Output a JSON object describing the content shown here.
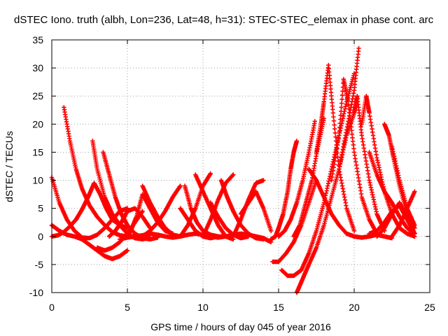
{
  "chart_data": {
    "type": "scatter",
    "title": "dSTEC Iono. truth (albh, Lon=236, Lat=48, h=31): STEC-STEC_elemax in phase cont. arc",
    "xlabel": "GPS time / hours of day 045 of year 2016",
    "ylabel": "dSTEC  / TECUs",
    "xlim": [
      0,
      25
    ],
    "ylim": [
      -10,
      35
    ],
    "xticks": [
      0,
      5,
      10,
      15,
      20,
      25
    ],
    "yticks": [
      -10,
      -5,
      0,
      5,
      10,
      15,
      20,
      25,
      30,
      35
    ],
    "grid": true,
    "marker": "+",
    "color": "#ff0000",
    "series": [
      {
        "x": [
          0.0,
          0.5,
          1.0,
          1.5,
          2.0,
          2.5,
          3.0,
          3.5,
          4.0,
          4.5,
          5.0
        ],
        "y": [
          10.5,
          6.0,
          3.0,
          1.0,
          -0.2,
          -0.3,
          0.3,
          1.5,
          3.0,
          4.5,
          5.0
        ]
      },
      {
        "x": [
          0.0,
          0.5,
          1.0,
          1.5,
          2.0,
          2.5,
          3.0,
          3.5,
          4.0,
          4.5,
          5.0
        ],
        "y": [
          2.0,
          1.0,
          0.3,
          0.0,
          -0.5,
          -1.5,
          -2.5,
          -3.5,
          -4.0,
          -3.5,
          -2.5
        ]
      },
      {
        "x": [
          0.0,
          0.4,
          0.8,
          1.2,
          1.6,
          2.0,
          2.4,
          2.8,
          3.2,
          3.6,
          4.0,
          4.5,
          5.0
        ],
        "y": [
          0.0,
          0.2,
          0.8,
          1.8,
          3.0,
          4.8,
          7.0,
          9.5,
          7.5,
          5.0,
          3.0,
          2.0,
          1.5
        ]
      },
      {
        "x": [
          0.8,
          1.2,
          1.6,
          2.0,
          2.5,
          3.0,
          3.5,
          4.0,
          4.5,
          5.0,
          5.5
        ],
        "y": [
          23.0,
          17.0,
          12.0,
          8.5,
          5.5,
          3.5,
          2.0,
          0.8,
          0.2,
          0.0,
          0.0
        ]
      },
      {
        "x": [
          2.7,
          3.0,
          3.5,
          4.0,
          4.5,
          5.0,
          5.5,
          6.0,
          6.5
        ],
        "y": [
          17.0,
          12.0,
          7.0,
          4.0,
          2.0,
          0.5,
          -0.3,
          -0.5,
          -0.2
        ]
      },
      {
        "x": [
          3.4,
          3.8,
          4.2,
          4.6,
          5.0,
          5.5,
          6.0,
          6.5,
          7.0
        ],
        "y": [
          15.0,
          11.0,
          7.0,
          4.0,
          2.0,
          0.5,
          -0.3,
          -0.5,
          -0.2
        ]
      },
      {
        "x": [
          3.0,
          3.5,
          4.0,
          4.5,
          5.0,
          5.5,
          6.0
        ],
        "y": [
          -2.0,
          -2.5,
          -2.0,
          -1.0,
          0.5,
          2.5,
          4.5
        ]
      },
      {
        "x": [
          3.8,
          4.2,
          4.6,
          5.0,
          5.5,
          6.0,
          6.5
        ],
        "y": [
          0.0,
          1.0,
          2.5,
          4.5,
          5.0,
          3.5,
          1.5
        ]
      },
      {
        "x": [
          5.0,
          5.3,
          5.6,
          6.0,
          6.5,
          7.0,
          7.5,
          8.0
        ],
        "y": [
          0.0,
          1.5,
          3.5,
          7.5,
          5.0,
          2.5,
          1.0,
          0.5
        ]
      },
      {
        "x": [
          6.0,
          6.5,
          7.0,
          7.5,
          8.0,
          8.5
        ],
        "y": [
          9.0,
          6.0,
          3.5,
          1.5,
          0.3,
          0.0
        ]
      },
      {
        "x": [
          6.0,
          6.5,
          7.0,
          7.5,
          8.0,
          8.5
        ],
        "y": [
          0.0,
          1.0,
          2.5,
          4.5,
          7.0,
          9.0
        ]
      },
      {
        "x": [
          4.5,
          5.0,
          5.5,
          6.0,
          6.5,
          7.0,
          7.5,
          8.0,
          8.5,
          9.0,
          9.5,
          10.0,
          10.5,
          11.0,
          11.5,
          12.0,
          12.5,
          13.0,
          13.5,
          14.0,
          14.5
        ],
        "y": [
          -0.5,
          -0.2,
          0.0,
          0.2,
          0.5,
          0.3,
          0.0,
          -0.2,
          0.0,
          0.3,
          0.5,
          0.3,
          0.0,
          -0.2,
          0.0,
          0.3,
          0.5,
          0.3,
          0.0,
          -0.3,
          -1.0
        ]
      },
      {
        "x": [
          8.8,
          9.2,
          9.6,
          10.0,
          10.5,
          11.0,
          11.5
        ],
        "y": [
          9.0,
          5.0,
          2.5,
          1.0,
          0.3,
          0.0,
          0.0
        ]
      },
      {
        "x": [
          8.5,
          9.0,
          9.5,
          10.0,
          10.5,
          11.0
        ],
        "y": [
          5.0,
          3.0,
          1.0,
          0.0,
          -0.3,
          0.0
        ]
      },
      {
        "x": [
          8.5,
          9.0,
          9.5,
          10.0,
          10.5
        ],
        "y": [
          0.0,
          2.0,
          5.0,
          9.0,
          11.2
        ]
      },
      {
        "x": [
          9.5,
          10.0,
          10.5,
          11.0,
          11.5,
          12.0
        ],
        "y": [
          11.0,
          8.0,
          5.0,
          2.0,
          0.0,
          -0.5
        ]
      },
      {
        "x": [
          10.0,
          10.5,
          11.0,
          11.5,
          12.0
        ],
        "y": [
          0.0,
          3.0,
          6.5,
          9.5,
          11.0
        ]
      },
      {
        "x": [
          10.5,
          11.0,
          11.5,
          12.0,
          12.5,
          13.0
        ],
        "y": [
          6.0,
          3.5,
          1.5,
          0.3,
          -0.3,
          0.0
        ]
      },
      {
        "x": [
          11.2,
          11.6,
          12.0,
          12.5,
          13.0,
          13.5,
          14.0
        ],
        "y": [
          10.0,
          7.0,
          4.5,
          2.0,
          0.5,
          -0.3,
          -0.5
        ]
      },
      {
        "x": [
          12.0,
          12.5,
          13.0,
          13.5,
          14.0
        ],
        "y": [
          0.0,
          3.0,
          6.5,
          9.5,
          10.0
        ]
      },
      {
        "x": [
          12.5,
          13.0,
          13.5,
          14.0,
          14.5
        ],
        "y": [
          4.0,
          6.0,
          8.0,
          5.0,
          1.0
        ]
      },
      {
        "x": [
          14.5,
          14.8,
          15.0,
          15.3,
          15.6,
          15.8,
          16.0,
          16.2
        ],
        "y": [
          -0.5,
          0.0,
          1.5,
          4.0,
          8.0,
          12.0,
          15.0,
          17.0
        ]
      },
      {
        "x": [
          15.0,
          15.4,
          15.8,
          16.2,
          16.6,
          17.0,
          17.4
        ],
        "y": [
          0.0,
          1.0,
          3.0,
          6.0,
          10.0,
          15.0,
          20.5
        ]
      },
      {
        "x": [
          16.0,
          16.4,
          16.8,
          17.2,
          17.6,
          18.0
        ],
        "y": [
          0.0,
          2.0,
          6.0,
          10.0,
          16.0,
          21.0
        ]
      },
      {
        "x": [
          14.6,
          15.0,
          15.5,
          16.0,
          16.5,
          17.0,
          17.5
        ],
        "y": [
          -4.5,
          -4.5,
          -3.0,
          -1.0,
          2.0,
          6.0,
          10.0
        ]
      },
      {
        "x": [
          15.2,
          15.6,
          16.0,
          16.5,
          17.0,
          17.5,
          18.0,
          18.5,
          19.0,
          19.5,
          20.0
        ],
        "y": [
          -6.0,
          -7.0,
          -7.0,
          -6.0,
          -3.0,
          1.0,
          6.0,
          12.0,
          18.0,
          24.0,
          29.0
        ]
      },
      {
        "x": [
          16.2,
          16.6,
          17.0,
          17.5,
          18.0,
          18.5,
          19.0,
          19.5,
          20.0,
          20.3
        ],
        "y": [
          -10.0,
          -7.5,
          -5.0,
          -2.0,
          2.0,
          7.0,
          12.0,
          19.0,
          26.0,
          33.5
        ]
      },
      {
        "x": [
          17.5,
          17.8,
          18.0,
          18.3,
          18.6,
          19.0,
          19.5,
          20.0
        ],
        "y": [
          15.0,
          20.0,
          24.0,
          30.5,
          22.0,
          12.0,
          5.0,
          1.0
        ]
      },
      {
        "x": [
          17.0,
          17.5,
          18.0,
          18.5,
          19.0,
          19.5,
          20.0,
          20.5,
          21.0,
          21.5,
          22.0,
          22.5
        ],
        "y": [
          12.0,
          10.0,
          7.0,
          4.0,
          2.0,
          0.5,
          0.0,
          -0.2,
          0.0,
          0.3,
          0.0,
          -0.3
        ]
      },
      {
        "x": [
          18.5,
          19.0,
          19.3,
          19.6,
          20.0,
          20.5,
          21.0,
          21.5
        ],
        "y": [
          10.0,
          18.0,
          28.0,
          24.0,
          15.0,
          7.0,
          3.0,
          0.5
        ]
      },
      {
        "x": [
          19.0,
          19.5,
          20.0,
          20.2,
          20.5,
          21.0,
          21.5,
          22.0
        ],
        "y": [
          12.0,
          18.0,
          22.0,
          25.0,
          18.0,
          10.0,
          4.0,
          1.0
        ]
      },
      {
        "x": [
          20.5,
          20.8,
          21.0,
          21.5,
          22.0,
          22.5,
          23.0,
          23.5,
          24.0
        ],
        "y": [
          20.0,
          25.0,
          22.0,
          14.0,
          8.0,
          4.0,
          1.5,
          0.5,
          0.0
        ]
      },
      {
        "x": [
          21.0,
          21.5,
          22.0,
          22.5,
          23.0,
          23.5,
          24.0
        ],
        "y": [
          15.0,
          11.0,
          8.0,
          6.0,
          3.5,
          1.5,
          0.5
        ]
      },
      {
        "x": [
          22.0,
          22.3,
          22.6,
          23.0,
          23.5,
          24.0
        ],
        "y": [
          20.0,
          18.0,
          14.0,
          9.0,
          4.0,
          1.5
        ]
      },
      {
        "x": [
          22.5,
          23.0,
          23.5,
          24.0
        ],
        "y": [
          16.0,
          10.0,
          5.0,
          2.0
        ]
      },
      {
        "x": [
          21.0,
          21.5,
          22.0,
          22.5,
          23.0,
          23.5,
          24.0
        ],
        "y": [
          0.5,
          1.0,
          2.5,
          4.5,
          5.5,
          3.0,
          0.5
        ]
      },
      {
        "x": [
          22.5,
          23.0,
          23.5,
          24.0
        ],
        "y": [
          0.0,
          2.0,
          5.0,
          8.0
        ]
      },
      {
        "x": [
          21.5,
          22.0,
          22.5,
          23.0,
          23.5,
          24.0
        ],
        "y": [
          0.0,
          1.5,
          4.0,
          6.0,
          3.5,
          0.5
        ]
      }
    ]
  }
}
